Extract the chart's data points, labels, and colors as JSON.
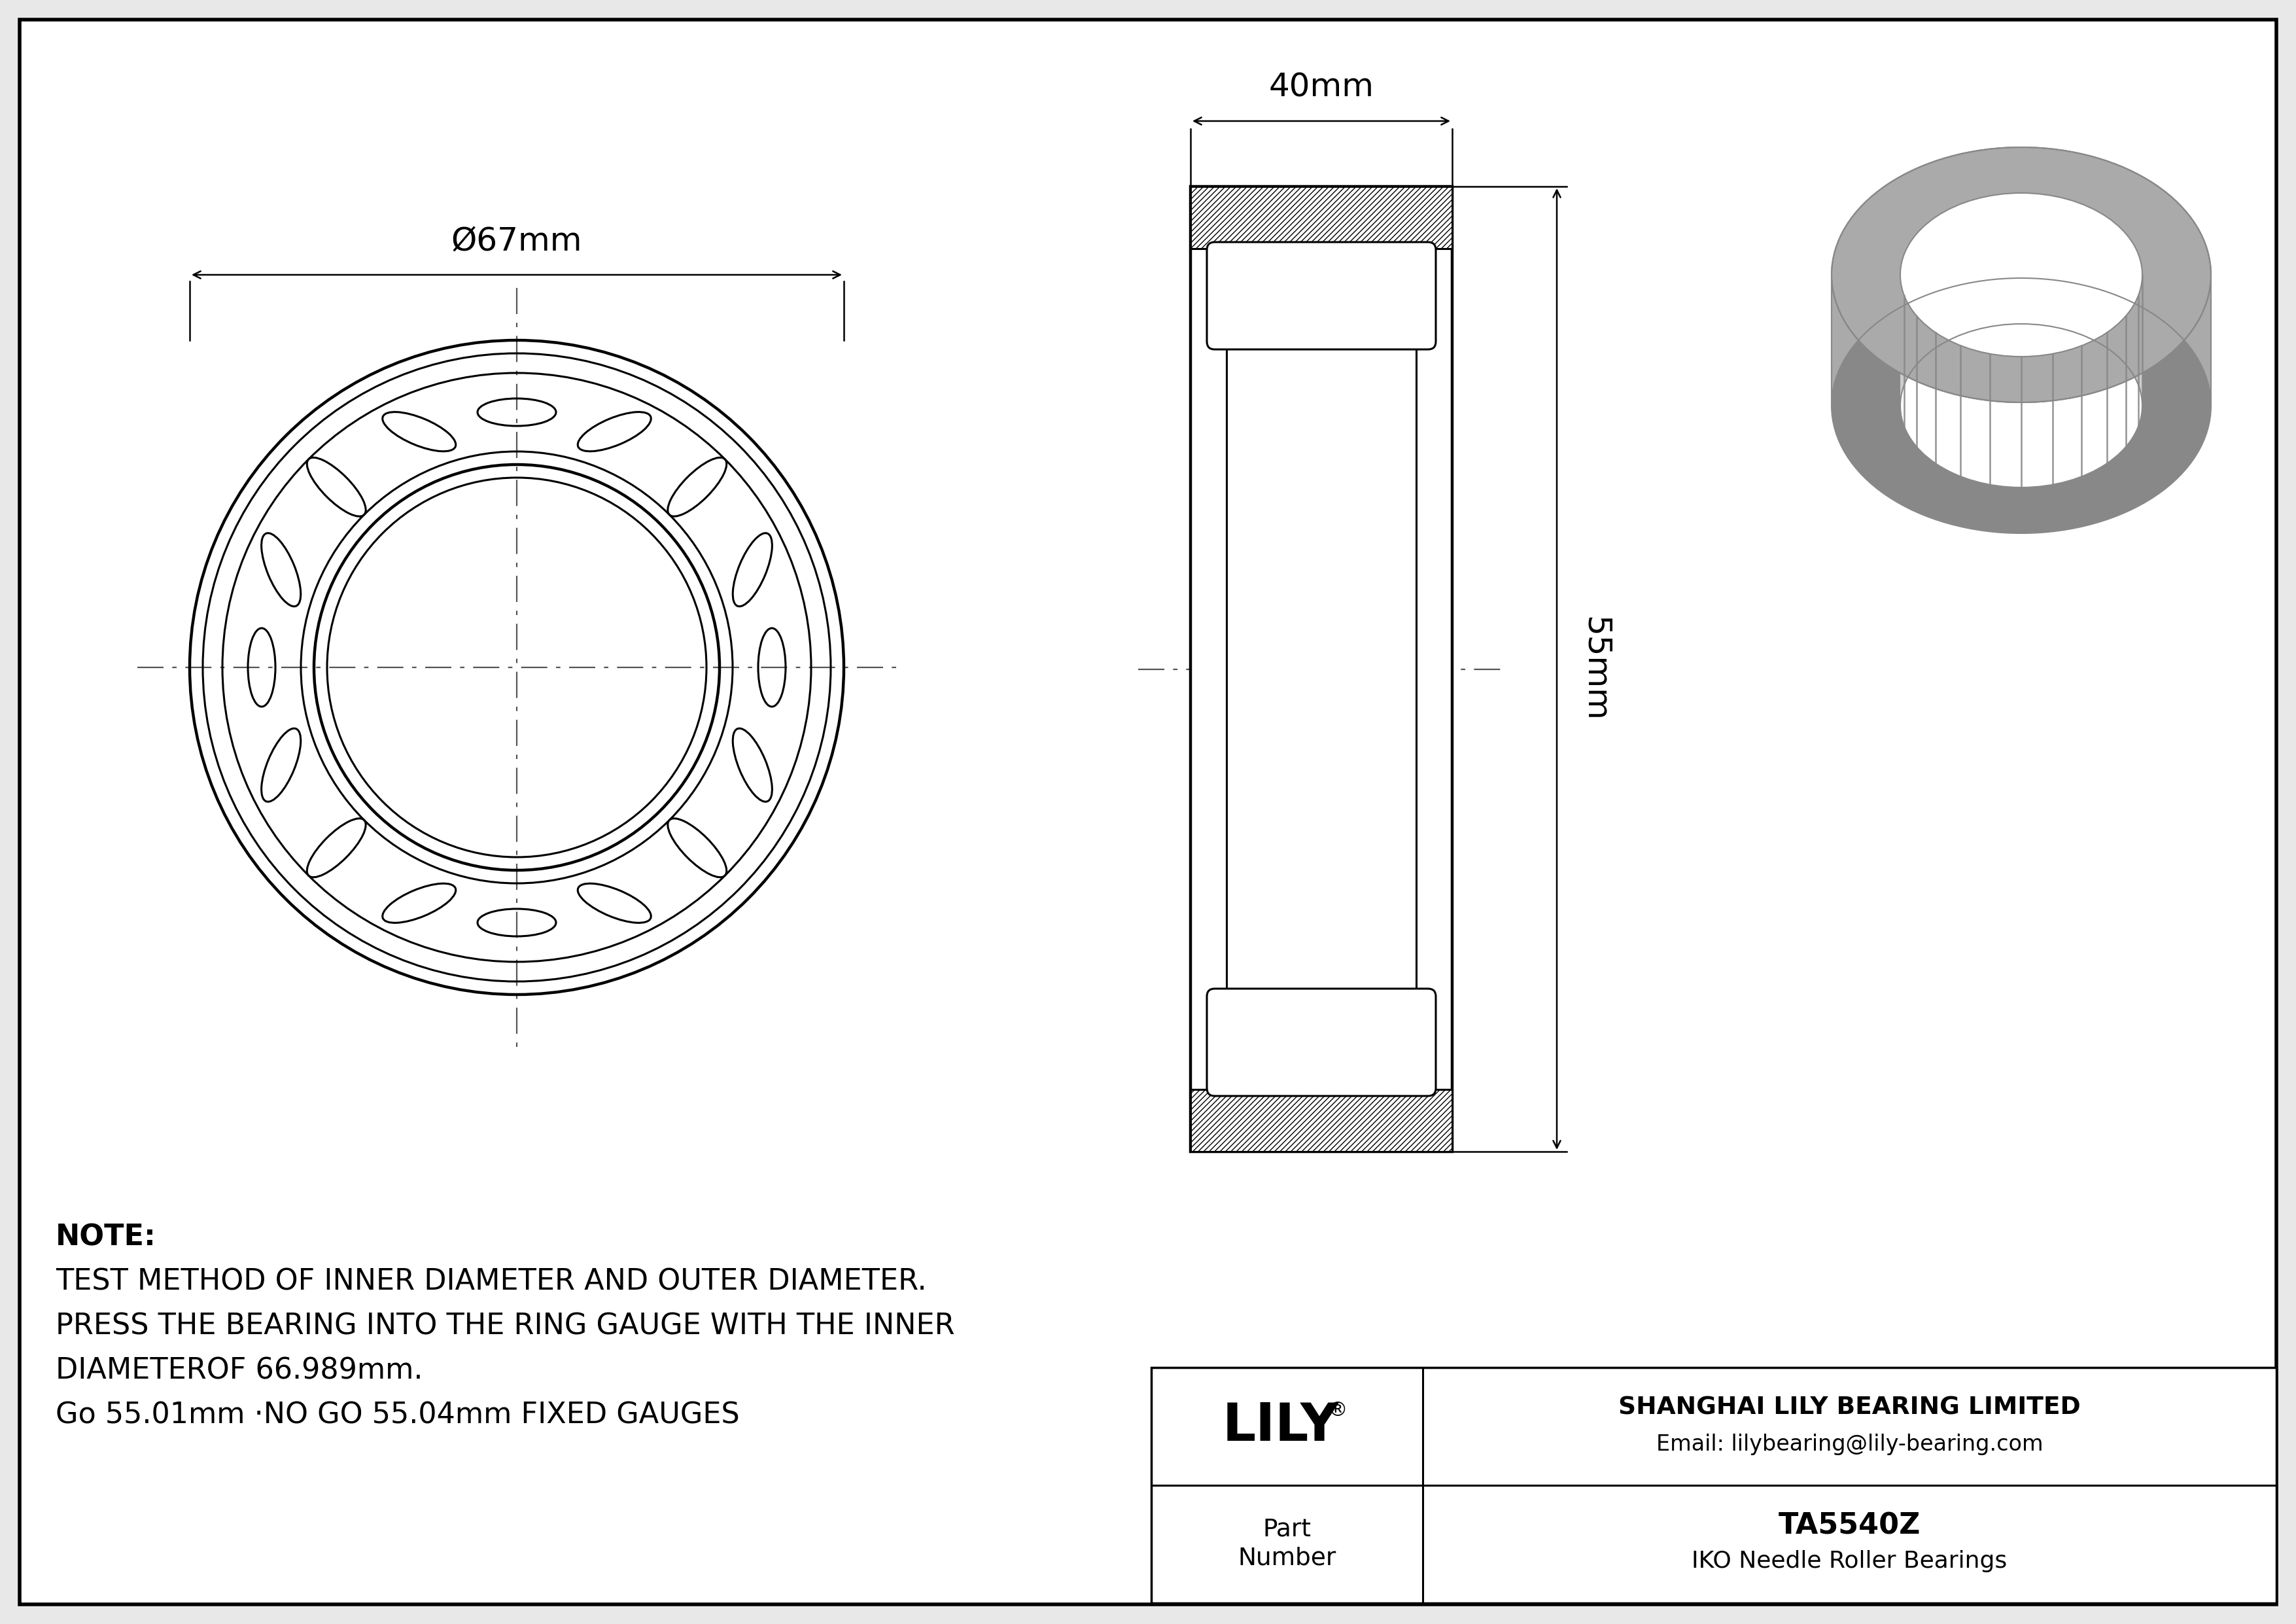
{
  "bg_color": "#e8e8e8",
  "paper_color": "#ffffff",
  "line_color": "#000000",
  "part_number": "TA5540Z",
  "bearing_type": "IKO Needle Roller Bearings",
  "company": "SHANGHAI LILY BEARING LIMITED",
  "email": "Email: lilybearing@lily-bearing.com",
  "outer_diameter_label": "Ø67mm",
  "width_label": "40mm",
  "height_label": "55mm",
  "note_line1": "NOTE:",
  "note_line2": "TEST METHOD OF INNER DIAMETER AND OUTER DIAMETER.",
  "note_line3": "PRESS THE BEARING INTO THE RING GAUGE WITH THE INNER",
  "note_line4": "DIAMETEROF 66.989mm.",
  "note_line5": "Go 55.01mm ·NO GO 55.04mm FIXED GAUGES",
  "gray3d": "#aaaaaa",
  "gray3d_dark": "#888888",
  "gray3d_light": "#cccccc",
  "gray3d_lighter": "#bbbbbb"
}
